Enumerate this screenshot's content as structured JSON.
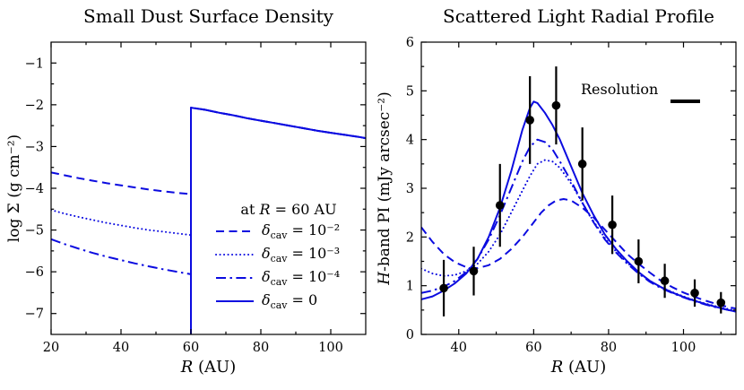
{
  "figure": {
    "bg": "#ffffff",
    "accent": "#0b0be0",
    "black": "#000000"
  },
  "chart_data": [
    {
      "id": "small-dust",
      "type": "line",
      "title": "Small Dust Surface Density",
      "xlabel_runs": [
        {
          "text": "R",
          "italic": true
        },
        {
          "text": " (AU)",
          "italic": false
        }
      ],
      "ylabel": "log Σ (g cm⁻²)",
      "xlim": [
        20,
        110
      ],
      "ylim": [
        -7.5,
        -0.5
      ],
      "xticks": [
        20,
        40,
        60,
        80,
        100
      ],
      "xminor": [
        30,
        50,
        70,
        90
      ],
      "yticks": [
        -7,
        -6,
        -5,
        -4,
        -3,
        -2,
        -1
      ],
      "yminor": [
        -6.5,
        -5.5,
        -4.5,
        -3.5,
        -2.5,
        -1.5
      ],
      "grid": false,
      "legend_position": "lower right",
      "legend_header_runs": [
        {
          "text": "at "
        },
        {
          "text": "R",
          "italic": true
        },
        {
          "text": " = 60 AU"
        }
      ],
      "series": [
        {
          "name": "delta_cav_1e-2",
          "style": "dashed",
          "legend": {
            "sym": "δ",
            "sub": "cav",
            "val": " = 10⁻²"
          },
          "points": [
            [
              20,
              -3.62
            ],
            [
              24,
              -3.69
            ],
            [
              28,
              -3.76
            ],
            [
              32,
              -3.82
            ],
            [
              36,
              -3.88
            ],
            [
              40,
              -3.93
            ],
            [
              44,
              -3.98
            ],
            [
              48,
              -4.03
            ],
            [
              52,
              -4.07
            ],
            [
              56,
              -4.11
            ],
            [
              60,
              -4.14
            ],
            [
              60,
              -2.07
            ],
            [
              64,
              -2.12
            ],
            [
              68,
              -2.19
            ],
            [
              72,
              -2.25
            ],
            [
              76,
              -2.32
            ],
            [
              80,
              -2.38
            ],
            [
              84,
              -2.44
            ],
            [
              88,
              -2.5
            ],
            [
              92,
              -2.56
            ],
            [
              96,
              -2.62
            ],
            [
              100,
              -2.67
            ],
            [
              104,
              -2.72
            ],
            [
              108,
              -2.77
            ],
            [
              110,
              -2.8
            ]
          ]
        },
        {
          "name": "delta_cav_1e-3",
          "style": "dotted",
          "legend": {
            "sym": "δ",
            "sub": "cav",
            "val": " = 10⁻³"
          },
          "points": [
            [
              20,
              -4.52
            ],
            [
              24,
              -4.61
            ],
            [
              28,
              -4.69
            ],
            [
              32,
              -4.76
            ],
            [
              36,
              -4.83
            ],
            [
              40,
              -4.89
            ],
            [
              44,
              -4.95
            ],
            [
              48,
              -5.0
            ],
            [
              52,
              -5.04
            ],
            [
              56,
              -5.08
            ],
            [
              60,
              -5.12
            ],
            [
              60,
              -2.07
            ],
            [
              64,
              -2.12
            ],
            [
              68,
              -2.19
            ],
            [
              72,
              -2.25
            ],
            [
              76,
              -2.32
            ],
            [
              80,
              -2.38
            ],
            [
              84,
              -2.44
            ],
            [
              88,
              -2.5
            ],
            [
              92,
              -2.56
            ],
            [
              96,
              -2.62
            ],
            [
              100,
              -2.67
            ],
            [
              104,
              -2.72
            ],
            [
              108,
              -2.77
            ],
            [
              110,
              -2.8
            ]
          ]
        },
        {
          "name": "delta_cav_1e-4",
          "style": "dashdot",
          "legend": {
            "sym": "δ",
            "sub": "cav",
            "val": " = 10⁻⁴"
          },
          "points": [
            [
              20,
              -5.22
            ],
            [
              24,
              -5.34
            ],
            [
              28,
              -5.45
            ],
            [
              32,
              -5.55
            ],
            [
              36,
              -5.64
            ],
            [
              40,
              -5.72
            ],
            [
              44,
              -5.8
            ],
            [
              48,
              -5.87
            ],
            [
              52,
              -5.94
            ],
            [
              56,
              -6.0
            ],
            [
              60,
              -6.06
            ],
            [
              60,
              -2.07
            ],
            [
              64,
              -2.12
            ],
            [
              68,
              -2.19
            ],
            [
              72,
              -2.25
            ],
            [
              76,
              -2.32
            ],
            [
              80,
              -2.38
            ],
            [
              84,
              -2.44
            ],
            [
              88,
              -2.5
            ],
            [
              92,
              -2.56
            ],
            [
              96,
              -2.62
            ],
            [
              100,
              -2.67
            ],
            [
              104,
              -2.72
            ],
            [
              108,
              -2.77
            ],
            [
              110,
              -2.8
            ]
          ]
        },
        {
          "name": "delta_cav_0",
          "style": "solid",
          "legend": {
            "sym": "δ",
            "sub": "cav",
            "val": " = 0"
          },
          "points": [
            [
              60,
              -7.5
            ],
            [
              60,
              -2.07
            ],
            [
              64,
              -2.12
            ],
            [
              68,
              -2.19
            ],
            [
              72,
              -2.25
            ],
            [
              76,
              -2.32
            ],
            [
              80,
              -2.38
            ],
            [
              84,
              -2.44
            ],
            [
              88,
              -2.5
            ],
            [
              92,
              -2.56
            ],
            [
              96,
              -2.62
            ],
            [
              100,
              -2.67
            ],
            [
              104,
              -2.72
            ],
            [
              108,
              -2.77
            ],
            [
              110,
              -2.8
            ]
          ]
        }
      ]
    },
    {
      "id": "scattered-light",
      "type": "line+scatter",
      "title": "Scattered Light Radial Profile",
      "xlabel_runs": [
        {
          "text": "R",
          "italic": true
        },
        {
          "text": " (AU)",
          "italic": false
        }
      ],
      "ylabel_runs": [
        {
          "text": "H",
          "italic": true
        },
        {
          "text": "-band PI (mJy arcsec⁻²)",
          "italic": false
        }
      ],
      "resolution_label": "Resolution",
      "xlim": [
        30,
        114
      ],
      "ylim": [
        0,
        6
      ],
      "xticks": [
        40,
        60,
        80,
        100
      ],
      "xminor": [
        50,
        70,
        90,
        110
      ],
      "yticks": [
        0,
        1,
        2,
        3,
        4,
        5,
        6
      ],
      "yminor": [
        0.5,
        1.5,
        2.5,
        3.5,
        4.5,
        5.5
      ],
      "grid": false,
      "series": [
        {
          "name": "model_1e-2",
          "style": "dashed",
          "points": [
            [
              30,
              2.2
            ],
            [
              33,
              1.9
            ],
            [
              36,
              1.65
            ],
            [
              39,
              1.48
            ],
            [
              42,
              1.38
            ],
            [
              45,
              1.36
            ],
            [
              48,
              1.42
            ],
            [
              51,
              1.55
            ],
            [
              54,
              1.75
            ],
            [
              57,
              2.0
            ],
            [
              60,
              2.3
            ],
            [
              62,
              2.5
            ],
            [
              64,
              2.65
            ],
            [
              66,
              2.75
            ],
            [
              68,
              2.78
            ],
            [
              70,
              2.75
            ],
            [
              73,
              2.6
            ],
            [
              76,
              2.4
            ],
            [
              79,
              2.15
            ],
            [
              82,
              1.9
            ],
            [
              85,
              1.65
            ],
            [
              88,
              1.45
            ],
            [
              91,
              1.27
            ],
            [
              94,
              1.1
            ],
            [
              97,
              0.97
            ],
            [
              100,
              0.86
            ],
            [
              103,
              0.77
            ],
            [
              106,
              0.69
            ],
            [
              109,
              0.62
            ],
            [
              112,
              0.56
            ],
            [
              114,
              0.53
            ]
          ]
        },
        {
          "name": "model_1e-3",
          "style": "dotted",
          "points": [
            [
              30,
              1.35
            ],
            [
              33,
              1.25
            ],
            [
              36,
              1.2
            ],
            [
              39,
              1.22
            ],
            [
              42,
              1.3
            ],
            [
              45,
              1.45
            ],
            [
              48,
              1.7
            ],
            [
              51,
              2.05
            ],
            [
              54,
              2.5
            ],
            [
              57,
              2.95
            ],
            [
              59,
              3.25
            ],
            [
              61,
              3.5
            ],
            [
              63,
              3.58
            ],
            [
              65,
              3.55
            ],
            [
              67,
              3.42
            ],
            [
              70,
              3.1
            ],
            [
              73,
              2.7
            ],
            [
              76,
              2.32
            ],
            [
              79,
              1.98
            ],
            [
              82,
              1.7
            ],
            [
              85,
              1.47
            ],
            [
              88,
              1.27
            ],
            [
              91,
              1.1
            ],
            [
              94,
              0.97
            ],
            [
              97,
              0.87
            ],
            [
              100,
              0.78
            ],
            [
              103,
              0.7
            ],
            [
              106,
              0.63
            ],
            [
              109,
              0.57
            ],
            [
              112,
              0.52
            ],
            [
              114,
              0.49
            ]
          ]
        },
        {
          "name": "model_1e-4",
          "style": "dashdot",
          "points": [
            [
              30,
              0.85
            ],
            [
              33,
              0.9
            ],
            [
              36,
              0.98
            ],
            [
              39,
              1.1
            ],
            [
              42,
              1.28
            ],
            [
              45,
              1.55
            ],
            [
              48,
              1.95
            ],
            [
              51,
              2.45
            ],
            [
              54,
              3.0
            ],
            [
              57,
              3.55
            ],
            [
              59,
              3.85
            ],
            [
              61,
              4.0
            ],
            [
              63,
              3.95
            ],
            [
              65,
              3.8
            ],
            [
              67,
              3.55
            ],
            [
              70,
              3.15
            ],
            [
              73,
              2.7
            ],
            [
              76,
              2.3
            ],
            [
              79,
              1.95
            ],
            [
              82,
              1.68
            ],
            [
              85,
              1.45
            ],
            [
              88,
              1.25
            ],
            [
              91,
              1.08
            ],
            [
              94,
              0.95
            ],
            [
              97,
              0.85
            ],
            [
              100,
              0.76
            ],
            [
              103,
              0.68
            ],
            [
              106,
              0.61
            ],
            [
              109,
              0.55
            ],
            [
              112,
              0.5
            ],
            [
              114,
              0.47
            ]
          ]
        },
        {
          "name": "model_0",
          "style": "solid",
          "points": [
            [
              30,
              0.72
            ],
            [
              33,
              0.78
            ],
            [
              36,
              0.9
            ],
            [
              39,
              1.05
            ],
            [
              42,
              1.25
            ],
            [
              45,
              1.55
            ],
            [
              48,
              2.0
            ],
            [
              51,
              2.6
            ],
            [
              54,
              3.35
            ],
            [
              57,
              4.2
            ],
            [
              59,
              4.65
            ],
            [
              60,
              4.78
            ],
            [
              61,
              4.75
            ],
            [
              63,
              4.55
            ],
            [
              65,
              4.3
            ],
            [
              67,
              4.0
            ],
            [
              70,
              3.45
            ],
            [
              73,
              2.9
            ],
            [
              76,
              2.45
            ],
            [
              79,
              2.05
            ],
            [
              82,
              1.75
            ],
            [
              85,
              1.5
            ],
            [
              88,
              1.28
            ],
            [
              91,
              1.1
            ],
            [
              94,
              0.97
            ],
            [
              97,
              0.86
            ],
            [
              100,
              0.77
            ],
            [
              103,
              0.69
            ],
            [
              106,
              0.62
            ],
            [
              109,
              0.56
            ],
            [
              112,
              0.5
            ],
            [
              114,
              0.47
            ]
          ]
        }
      ],
      "points": {
        "name": "observed H-band PI",
        "x": [
          36,
          44,
          51,
          59,
          66,
          73,
          81,
          88,
          95,
          103,
          110
        ],
        "y": [
          0.95,
          1.3,
          2.65,
          4.4,
          4.7,
          3.5,
          2.25,
          1.5,
          1.1,
          0.85,
          0.65
        ],
        "yerr": [
          0.58,
          0.5,
          0.85,
          0.9,
          0.8,
          0.75,
          0.6,
          0.45,
          0.35,
          0.28,
          0.22
        ]
      }
    }
  ]
}
